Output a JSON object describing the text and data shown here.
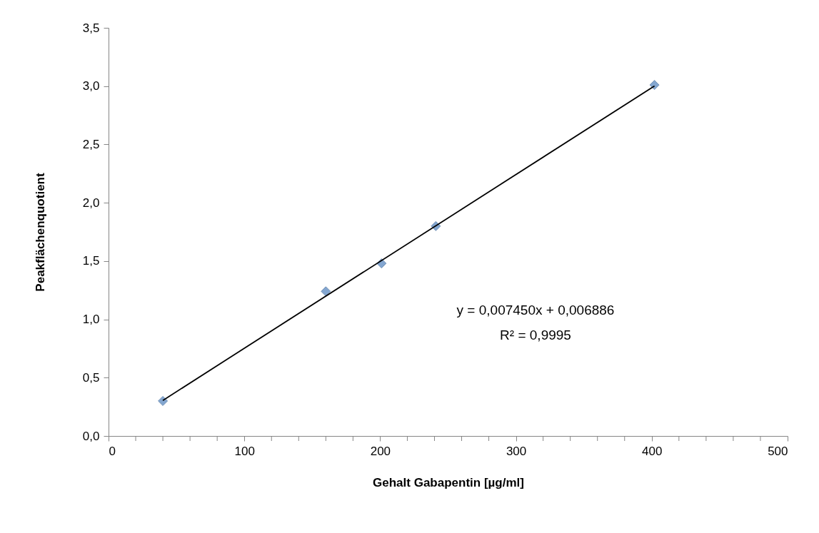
{
  "chart_data": {
    "type": "scatter",
    "xlabel": "Gehalt Gabapentin [µg/ml]",
    "ylabel": "Peakflächenquotient",
    "series": [
      {
        "type": "scatter",
        "color": "#4f81bd",
        "x": [
          40,
          160,
          201,
          241,
          402
        ],
        "values": [
          0.3,
          1.24,
          1.48,
          1.8,
          3.01
        ],
        "marker": "diamond"
      },
      {
        "type": "line",
        "color": "#000000",
        "x": [
          40,
          402
        ],
        "values": [
          0.305,
          3.002
        ],
        "marker": "none",
        "line_style": "solid"
      }
    ],
    "xlim": [
      0,
      500
    ],
    "xticks": [
      0,
      {
        "value": 20,
        "label": null
      },
      {
        "value": 40,
        "label": null
      },
      {
        "value": 60,
        "label": null
      },
      {
        "value": 80,
        "label": null
      },
      100,
      {
        "value": 120,
        "label": null
      },
      {
        "value": 140,
        "label": null
      },
      {
        "value": 160,
        "label": null
      },
      {
        "value": 180,
        "label": null
      },
      200,
      {
        "value": 220,
        "label": null
      },
      {
        "value": 240,
        "label": null
      },
      {
        "value": 260,
        "label": null
      },
      {
        "value": 280,
        "label": null
      },
      300,
      {
        "value": 320,
        "label": null
      },
      {
        "value": 340,
        "label": null
      },
      {
        "value": 360,
        "label": null
      },
      {
        "value": 380,
        "label": null
      },
      400,
      {
        "value": 420,
        "label": null
      },
      {
        "value": 440,
        "label": null
      },
      {
        "value": 460,
        "label": null
      },
      {
        "value": 480,
        "label": null
      },
      500
    ],
    "ylim": [
      0,
      3.5
    ],
    "yticks": [
      {
        "value": 0,
        "label": "0,0"
      },
      {
        "value": 0.5,
        "label": "0,5"
      },
      {
        "value": 1,
        "label": "1,0"
      },
      {
        "value": 1.5,
        "label": "1,5"
      },
      {
        "value": 2,
        "label": "2,0"
      },
      {
        "value": 2.5,
        "label": "2,5"
      },
      {
        "value": 3,
        "label": "3,0"
      },
      {
        "value": 3.5,
        "label": "3,5"
      }
    ],
    "grid": false,
    "annotations": [
      "y = 0,007450x + 0,006886",
      "R² = 0,9995"
    ]
  }
}
